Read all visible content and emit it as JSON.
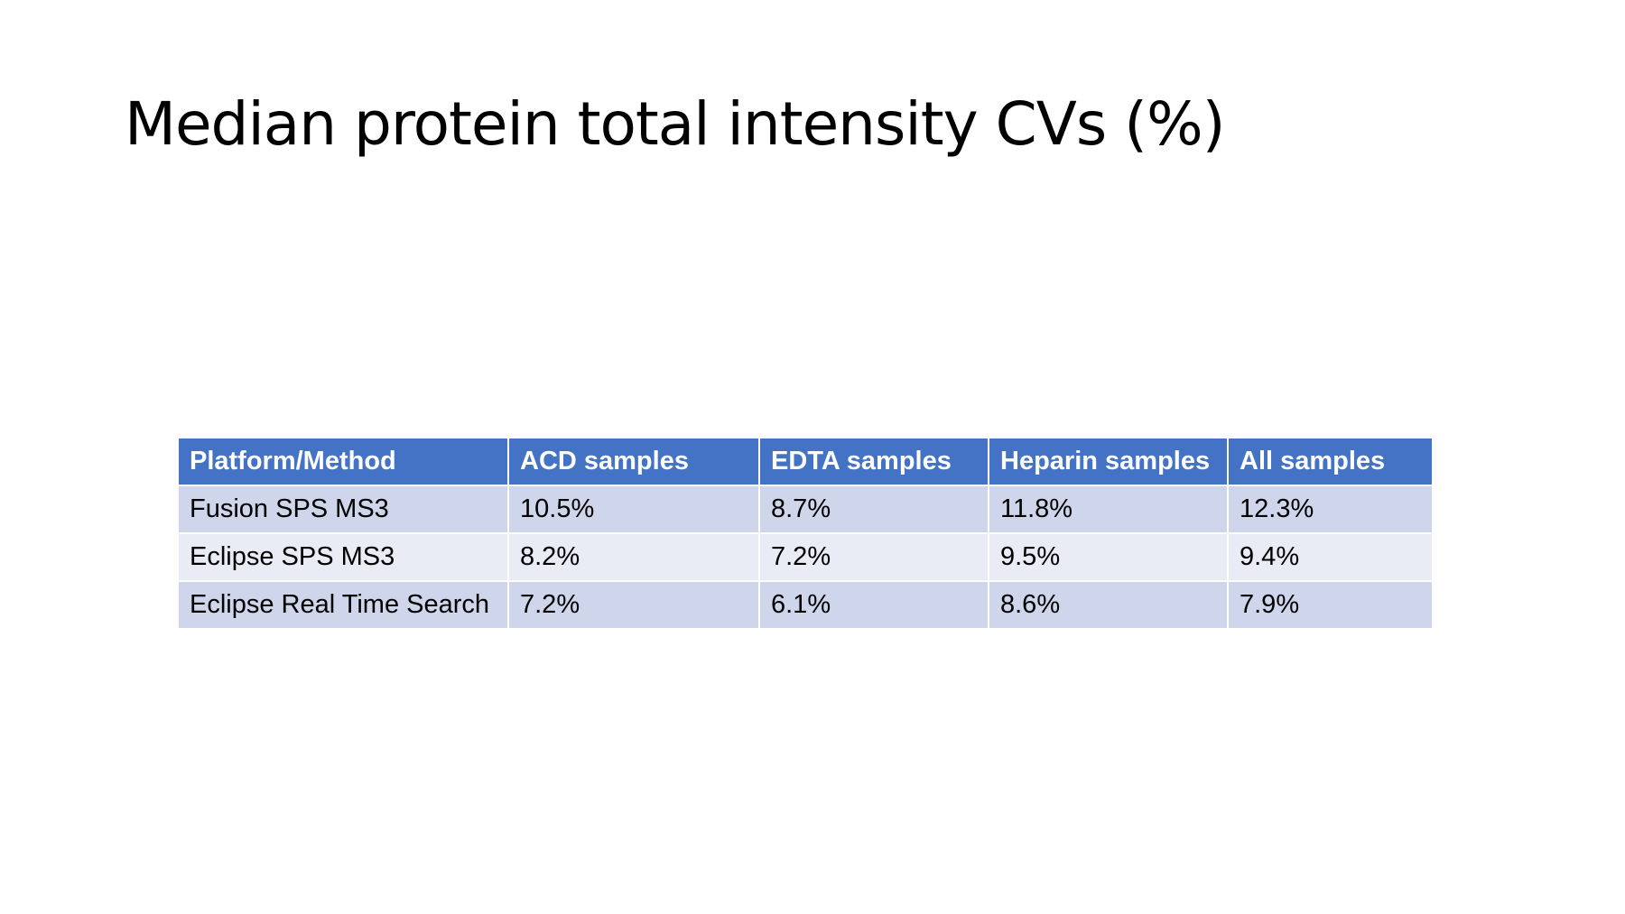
{
  "slide": {
    "title": "Median protein total intensity CVs (%)"
  },
  "table": {
    "headers": [
      "Platform/Method",
      "ACD samples",
      "EDTA samples",
      "Heparin samples",
      "All samples"
    ],
    "rows": [
      [
        "Fusion SPS MS3",
        "10.5%",
        "8.7%",
        "11.8%",
        "12.3%"
      ],
      [
        "Eclipse SPS MS3",
        "8.2%",
        "7.2%",
        "9.5%",
        "9.4%"
      ],
      [
        "Eclipse Real Time Search",
        "7.2%",
        "6.1%",
        "8.6%",
        "7.9%"
      ]
    ]
  },
  "colors": {
    "header_bg": "#4472c4",
    "row_odd_bg": "#cfd5ea",
    "row_even_bg": "#e9ebf5"
  }
}
